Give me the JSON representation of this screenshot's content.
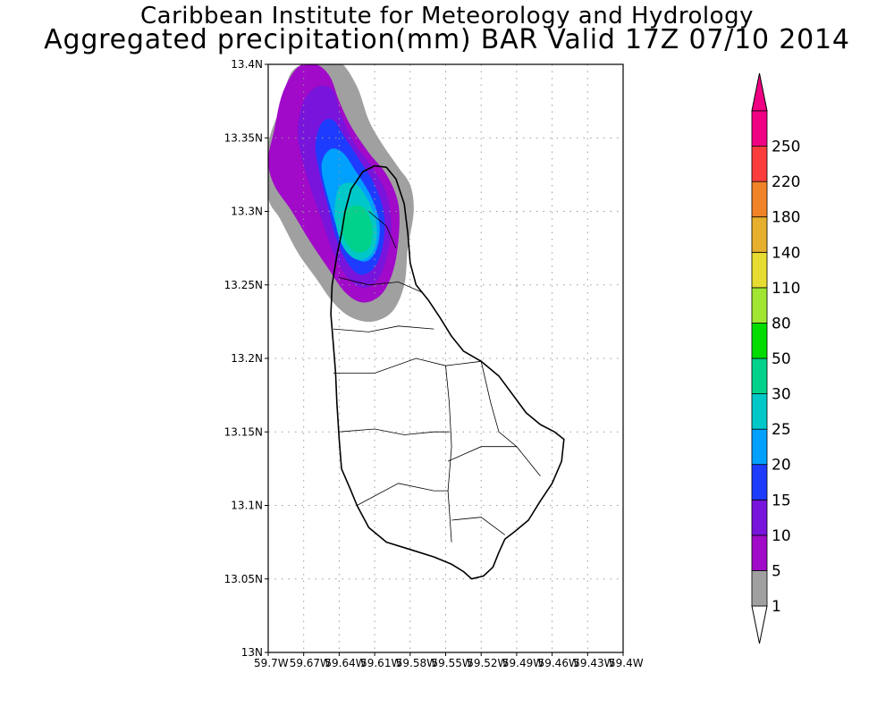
{
  "title": {
    "line1": "Caribbean Institute for Meteorology and Hydrology",
    "line2": "Aggregated precipitation(mm) BAR Valid 17Z 07/10 2014"
  },
  "map": {
    "lat_range": [
      13.0,
      13.4
    ],
    "lon_range": [
      -59.7,
      -59.4
    ],
    "grid": "dotted",
    "lat_ticks": [
      {
        "v": 13.0,
        "label": "13N"
      },
      {
        "v": 13.05,
        "label": "13.05N"
      },
      {
        "v": 13.1,
        "label": "13.1N"
      },
      {
        "v": 13.15,
        "label": "13.15N"
      },
      {
        "v": 13.2,
        "label": "13.2N"
      },
      {
        "v": 13.25,
        "label": "13.25N"
      },
      {
        "v": 13.3,
        "label": "13.3N"
      },
      {
        "v": 13.35,
        "label": "13.35N"
      },
      {
        "v": 13.4,
        "label": "13.4N"
      }
    ],
    "lon_ticks": [
      {
        "v": -59.7,
        "label": "59.7W"
      },
      {
        "v": -59.67,
        "label": "59.67W"
      },
      {
        "v": -59.64,
        "label": "59.64W"
      },
      {
        "v": -59.61,
        "label": "59.61W"
      },
      {
        "v": -59.58,
        "label": "59.58W"
      },
      {
        "v": -59.55,
        "label": "59.55W"
      },
      {
        "v": -59.52,
        "label": "59.52W"
      },
      {
        "v": -59.49,
        "label": "59.49W"
      },
      {
        "v": -59.46,
        "label": "59.46W"
      },
      {
        "v": -59.43,
        "label": "59.43W"
      },
      {
        "v": -59.4,
        "label": "59.4W"
      }
    ],
    "coastline": [
      [
        -59.635,
        13.3
      ],
      [
        -59.63,
        13.315
      ],
      [
        -59.62,
        13.327
      ],
      [
        -59.61,
        13.331
      ],
      [
        -59.6,
        13.33
      ],
      [
        -59.592,
        13.322
      ],
      [
        -59.585,
        13.305
      ],
      [
        -59.582,
        13.285
      ],
      [
        -59.58,
        13.265
      ],
      [
        -59.575,
        13.25
      ],
      [
        -59.565,
        13.24
      ],
      [
        -59.555,
        13.228
      ],
      [
        -59.545,
        13.215
      ],
      [
        -59.535,
        13.205
      ],
      [
        -59.52,
        13.198
      ],
      [
        -59.505,
        13.188
      ],
      [
        -59.493,
        13.175
      ],
      [
        -59.482,
        13.163
      ],
      [
        -59.47,
        13.155
      ],
      [
        -59.458,
        13.15
      ],
      [
        -59.45,
        13.145
      ],
      [
        -59.452,
        13.13
      ],
      [
        -59.46,
        13.115
      ],
      [
        -59.47,
        13.103
      ],
      [
        -59.48,
        13.09
      ],
      [
        -59.492,
        13.082
      ],
      [
        -59.5,
        13.077
      ],
      [
        -59.505,
        13.068
      ],
      [
        -59.51,
        13.058
      ],
      [
        -59.518,
        13.052
      ],
      [
        -59.528,
        13.05
      ],
      [
        -59.535,
        13.055
      ],
      [
        -59.545,
        13.06
      ],
      [
        -59.56,
        13.065
      ],
      [
        -59.58,
        13.07
      ],
      [
        -59.6,
        13.075
      ],
      [
        -59.615,
        13.085
      ],
      [
        -59.625,
        13.1
      ],
      [
        -59.63,
        13.11
      ],
      [
        -59.638,
        13.125
      ],
      [
        -59.64,
        13.145
      ],
      [
        -59.642,
        13.17
      ],
      [
        -59.643,
        13.19
      ],
      [
        -59.645,
        13.21
      ],
      [
        -59.647,
        13.23
      ],
      [
        -59.646,
        13.25
      ],
      [
        -59.642,
        13.27
      ],
      [
        -59.638,
        13.285
      ]
    ],
    "parish_lines": [
      [
        [
          -59.64,
          13.255
        ],
        [
          -59.615,
          13.25
        ],
        [
          -59.59,
          13.252
        ],
        [
          -59.57,
          13.245
        ]
      ],
      [
        [
          -59.645,
          13.22
        ],
        [
          -59.615,
          13.218
        ],
        [
          -59.59,
          13.222
        ],
        [
          -59.56,
          13.22
        ]
      ],
      [
        [
          -59.645,
          13.19
        ],
        [
          -59.61,
          13.19
        ],
        [
          -59.575,
          13.2
        ],
        [
          -59.55,
          13.195
        ],
        [
          -59.52,
          13.198
        ]
      ],
      [
        [
          -59.55,
          13.195
        ],
        [
          -59.547,
          13.17
        ],
        [
          -59.545,
          13.14
        ],
        [
          -59.548,
          13.11
        ],
        [
          -59.545,
          13.075
        ]
      ],
      [
        [
          -59.64,
          13.15
        ],
        [
          -59.61,
          13.152
        ],
        [
          -59.585,
          13.148
        ],
        [
          -59.56,
          13.15
        ],
        [
          -59.547,
          13.15
        ]
      ],
      [
        [
          -59.625,
          13.1
        ],
        [
          -59.59,
          13.115
        ],
        [
          -59.56,
          13.11
        ],
        [
          -59.548,
          13.11
        ]
      ],
      [
        [
          -59.548,
          13.13
        ],
        [
          -59.52,
          13.14
        ],
        [
          -59.49,
          13.14
        ],
        [
          -59.47,
          13.12
        ]
      ],
      [
        [
          -59.52,
          13.198
        ],
        [
          -59.512,
          13.17
        ],
        [
          -59.505,
          13.15
        ],
        [
          -59.49,
          13.14
        ]
      ],
      [
        [
          -59.545,
          13.09
        ],
        [
          -59.52,
          13.092
        ],
        [
          -59.5,
          13.08
        ]
      ],
      [
        [
          -59.615,
          13.3
        ],
        [
          -59.6,
          13.29
        ],
        [
          -59.592,
          13.275
        ]
      ]
    ],
    "precip_levels": [
      {
        "name": "1",
        "color": "#a0a0a0",
        "shape": [
          [
            -59.7,
            13.345
          ],
          [
            -59.69,
            13.37
          ],
          [
            -59.68,
            13.395
          ],
          [
            -59.66,
            13.402
          ],
          [
            -59.64,
            13.402
          ],
          [
            -59.625,
            13.385
          ],
          [
            -59.615,
            13.362
          ],
          [
            -59.603,
            13.345
          ],
          [
            -59.59,
            13.33
          ],
          [
            -59.58,
            13.318
          ],
          [
            -59.577,
            13.3
          ],
          [
            -59.582,
            13.275
          ],
          [
            -59.585,
            13.25
          ],
          [
            -59.595,
            13.232
          ],
          [
            -59.612,
            13.225
          ],
          [
            -59.63,
            13.228
          ],
          [
            -59.645,
            13.238
          ],
          [
            -59.66,
            13.255
          ],
          [
            -59.675,
            13.272
          ],
          [
            -59.69,
            13.295
          ],
          [
            -59.7,
            13.31
          ]
        ]
      },
      {
        "name": "5",
        "color": "#a00ac8",
        "shape": [
          [
            -59.7,
            13.335
          ],
          [
            -59.695,
            13.355
          ],
          [
            -59.688,
            13.38
          ],
          [
            -59.675,
            13.398
          ],
          [
            -59.66,
            13.4
          ],
          [
            -59.648,
            13.392
          ],
          [
            -59.64,
            13.375
          ],
          [
            -59.63,
            13.358
          ],
          [
            -59.615,
            13.34
          ],
          [
            -59.6,
            13.325
          ],
          [
            -59.59,
            13.305
          ],
          [
            -59.59,
            13.28
          ],
          [
            -59.595,
            13.258
          ],
          [
            -59.605,
            13.243
          ],
          [
            -59.62,
            13.238
          ],
          [
            -59.635,
            13.245
          ],
          [
            -59.65,
            13.262
          ],
          [
            -59.665,
            13.28
          ],
          [
            -59.68,
            13.3
          ],
          [
            -59.695,
            13.318
          ]
        ]
      },
      {
        "name": "10",
        "color": "#7814dc",
        "shape": [
          [
            -59.675,
            13.355
          ],
          [
            -59.67,
            13.375
          ],
          [
            -59.658,
            13.385
          ],
          [
            -59.645,
            13.382
          ],
          [
            -59.638,
            13.365
          ],
          [
            -59.626,
            13.345
          ],
          [
            -59.612,
            13.33
          ],
          [
            -59.6,
            13.312
          ],
          [
            -59.596,
            13.29
          ],
          [
            -59.6,
            13.268
          ],
          [
            -59.608,
            13.253
          ],
          [
            -59.62,
            13.248
          ],
          [
            -59.633,
            13.255
          ],
          [
            -59.645,
            13.272
          ],
          [
            -59.655,
            13.295
          ],
          [
            -59.665,
            13.318
          ],
          [
            -59.672,
            13.338
          ]
        ]
      },
      {
        "name": "15",
        "color": "#1e3cff",
        "shape": [
          [
            -59.66,
            13.345
          ],
          [
            -59.655,
            13.36
          ],
          [
            -59.645,
            13.362
          ],
          [
            -59.635,
            13.35
          ],
          [
            -59.622,
            13.334
          ],
          [
            -59.61,
            13.318
          ],
          [
            -59.602,
            13.298
          ],
          [
            -59.603,
            13.277
          ],
          [
            -59.61,
            13.262
          ],
          [
            -59.622,
            13.257
          ],
          [
            -59.633,
            13.265
          ],
          [
            -59.643,
            13.283
          ],
          [
            -59.65,
            13.305
          ],
          [
            -59.657,
            13.328
          ]
        ]
      },
      {
        "name": "20",
        "color": "#00a0ff",
        "shape": [
          [
            -59.655,
            13.33
          ],
          [
            -59.648,
            13.342
          ],
          [
            -59.637,
            13.34
          ],
          [
            -59.625,
            13.326
          ],
          [
            -59.613,
            13.31
          ],
          [
            -59.606,
            13.292
          ],
          [
            -59.608,
            13.275
          ],
          [
            -59.617,
            13.266
          ],
          [
            -59.629,
            13.27
          ],
          [
            -59.64,
            13.285
          ],
          [
            -59.648,
            13.305
          ]
        ]
      },
      {
        "name": "25",
        "color": "#00c8c8",
        "shape": [
          [
            -59.638,
            13.318
          ],
          [
            -59.625,
            13.318
          ],
          [
            -59.614,
            13.305
          ],
          [
            -59.608,
            13.288
          ],
          [
            -59.612,
            13.272
          ],
          [
            -59.624,
            13.267
          ],
          [
            -59.636,
            13.275
          ],
          [
            -59.643,
            13.292
          ],
          [
            -59.643,
            13.308
          ]
        ]
      },
      {
        "name": "30",
        "color": "#00d28c",
        "shape": [
          [
            -59.633,
            13.302
          ],
          [
            -59.62,
            13.303
          ],
          [
            -59.612,
            13.29
          ],
          [
            -59.614,
            13.276
          ],
          [
            -59.625,
            13.272
          ],
          [
            -59.635,
            13.28
          ],
          [
            -59.638,
            13.292
          ]
        ]
      }
    ]
  },
  "colorbar": {
    "levels": [
      {
        "label": "1",
        "color": "#a0a0a0"
      },
      {
        "label": "5",
        "color": "#a00ac8"
      },
      {
        "label": "10",
        "color": "#7814dc"
      },
      {
        "label": "15",
        "color": "#1e3cff"
      },
      {
        "label": "20",
        "color": "#00a0ff"
      },
      {
        "label": "25",
        "color": "#00c8c8"
      },
      {
        "label": "30",
        "color": "#00d28c"
      },
      {
        "label": "50",
        "color": "#00dc00"
      },
      {
        "label": "80",
        "color": "#a0e632"
      },
      {
        "label": "110",
        "color": "#e6dc32"
      },
      {
        "label": "140",
        "color": "#e6af2d"
      },
      {
        "label": "180",
        "color": "#f08228"
      },
      {
        "label": "220",
        "color": "#fa3c3c"
      },
      {
        "label": "250",
        "color": "#f00082"
      }
    ],
    "below_color": "#ffffff",
    "above_color": "#f00082"
  }
}
